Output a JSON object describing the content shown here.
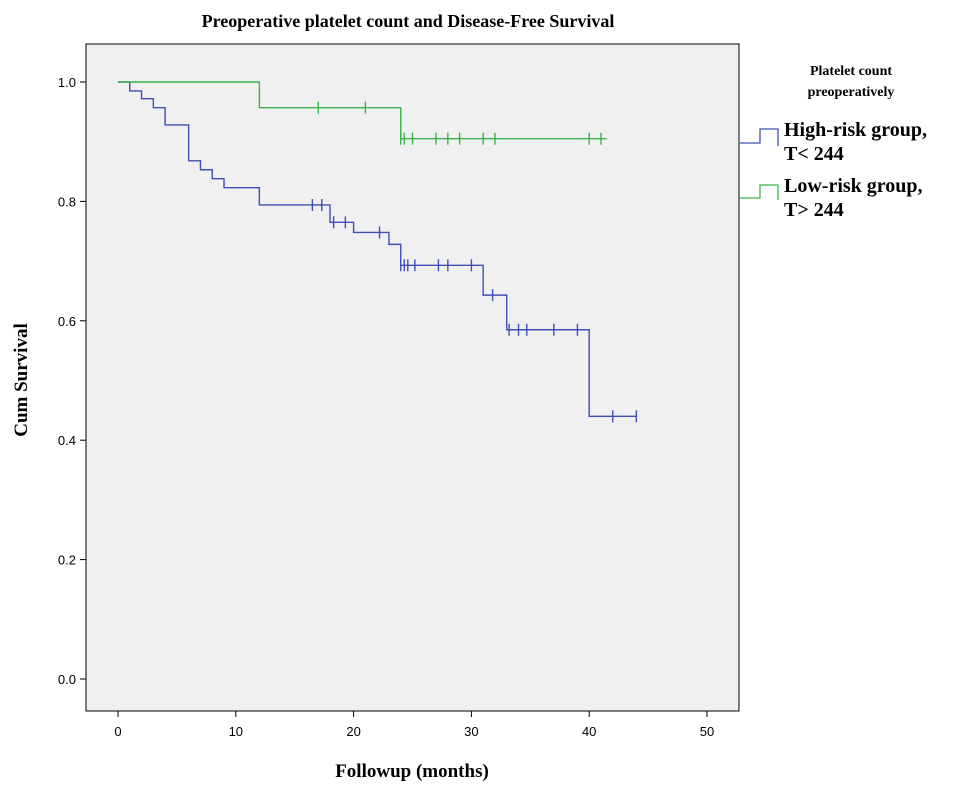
{
  "chart_data": {
    "type": "line",
    "subtype": "kaplan-meier-step",
    "title": "Preoperative platelet count and Disease-Free Survival",
    "xlabel": "Followup (months)",
    "ylabel": "Cum Survival",
    "xlim": [
      0,
      50
    ],
    "ylim": [
      0,
      1
    ],
    "x_ticks": [
      "0",
      "10",
      "20",
      "30",
      "40",
      "50"
    ],
    "y_ticks": [
      "0.0",
      "0.2",
      "0.4",
      "0.6",
      "0.8",
      "1.0"
    ],
    "grid": false,
    "legend": {
      "title_line1": "Platelet count",
      "title_line2": "preoperatively",
      "placement": "right"
    },
    "series": [
      {
        "name_line1": "High-risk group,",
        "name_line2": "T< 244",
        "color": "#3f4fb5",
        "steps": [
          [
            0,
            1.0
          ],
          [
            1,
            0.985
          ],
          [
            2,
            0.972
          ],
          [
            3,
            0.957
          ],
          [
            4,
            0.928
          ],
          [
            6,
            0.868
          ],
          [
            7,
            0.853
          ],
          [
            8,
            0.838
          ],
          [
            9,
            0.823
          ],
          [
            12,
            0.794
          ],
          [
            18,
            0.765
          ],
          [
            20,
            0.748
          ],
          [
            23,
            0.728
          ],
          [
            24,
            0.693
          ],
          [
            31,
            0.643
          ],
          [
            33,
            0.585
          ],
          [
            40,
            0.44
          ],
          [
            44,
            0.44
          ]
        ],
        "censored": [
          [
            16.5,
            0.794
          ],
          [
            17.3,
            0.794
          ],
          [
            18.3,
            0.765
          ],
          [
            19.3,
            0.765
          ],
          [
            22.2,
            0.748
          ],
          [
            24.0,
            0.693
          ],
          [
            24.3,
            0.693
          ],
          [
            24.6,
            0.693
          ],
          [
            25.2,
            0.693
          ],
          [
            27.2,
            0.693
          ],
          [
            28.0,
            0.693
          ],
          [
            30.0,
            0.693
          ],
          [
            31.8,
            0.643
          ],
          [
            33.2,
            0.585
          ],
          [
            34.0,
            0.585
          ],
          [
            34.7,
            0.585
          ],
          [
            37.0,
            0.585
          ],
          [
            39.0,
            0.585
          ],
          [
            42.0,
            0.44
          ],
          [
            44.0,
            0.44
          ]
        ]
      },
      {
        "name_line1": "Low-risk group,",
        "name_line2": "T> 244",
        "color": "#3bb34a",
        "steps": [
          [
            0,
            1.0
          ],
          [
            12,
            0.957
          ],
          [
            24,
            0.905
          ],
          [
            41.5,
            0.905
          ]
        ],
        "censored": [
          [
            17,
            0.957
          ],
          [
            21,
            0.957
          ],
          [
            24.0,
            0.905
          ],
          [
            24.3,
            0.905
          ],
          [
            25.0,
            0.905
          ],
          [
            27.0,
            0.905
          ],
          [
            28.0,
            0.905
          ],
          [
            29.0,
            0.905
          ],
          [
            31.0,
            0.905
          ],
          [
            32.0,
            0.905
          ],
          [
            40.0,
            0.905
          ],
          [
            41.0,
            0.905
          ]
        ]
      }
    ]
  }
}
